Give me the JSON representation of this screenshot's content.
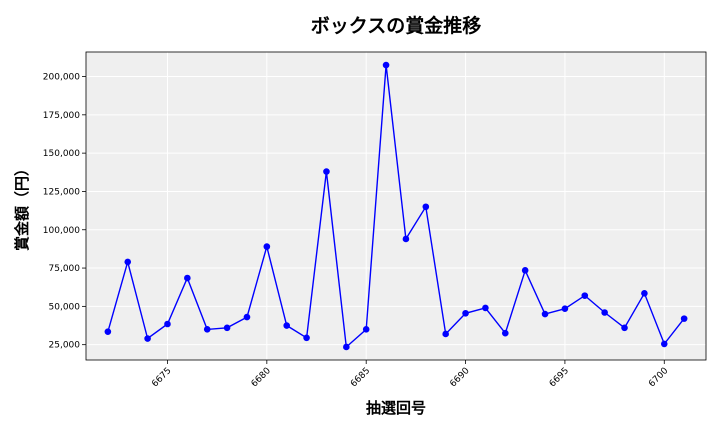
{
  "chart_data": {
    "type": "line",
    "title": "ボックスの賞金推移",
    "xlabel": "抽選回号",
    "ylabel": "賞金額（円）",
    "xlim": [
      6670.9,
      6702.1
    ],
    "ylim": [
      15000,
      216000
    ],
    "xticks": [
      6675,
      6680,
      6685,
      6690,
      6695,
      6700
    ],
    "xtick_labels": [
      "6675",
      "6680",
      "6685",
      "6690",
      "6695",
      "6700"
    ],
    "yticks": [
      25000,
      50000,
      75000,
      100000,
      125000,
      150000,
      175000,
      200000
    ],
    "ytick_labels": [
      "25,000",
      "50,000",
      "75,000",
      "100,000",
      "125,000",
      "150,000",
      "175,000",
      "200,000"
    ],
    "grid": true,
    "series": [
      {
        "x": [
          6672,
          6673,
          6674,
          6675,
          6676,
          6677,
          6678,
          6679,
          6680,
          6681,
          6682,
          6683,
          6684,
          6685,
          6686,
          6687,
          6688,
          6689,
          6690,
          6691,
          6692,
          6693,
          6694,
          6695,
          6696,
          6697,
          6698,
          6699,
          6700,
          6701
        ],
        "values": [
          33500,
          79000,
          29000,
          38500,
          68500,
          35000,
          36000,
          43000,
          89000,
          37500,
          29500,
          138000,
          23500,
          35000,
          207500,
          94000,
          115000,
          32000,
          45500,
          49000,
          32500,
          73500,
          45000,
          48500,
          57000,
          46000,
          36000,
          58500,
          25500,
          42000
        ],
        "color": "#0000ff"
      }
    ]
  },
  "colors": {
    "plot_bg": "#efefef",
    "grid": "#ffffff",
    "line": "#0000ff",
    "marker": "#0000ff"
  }
}
